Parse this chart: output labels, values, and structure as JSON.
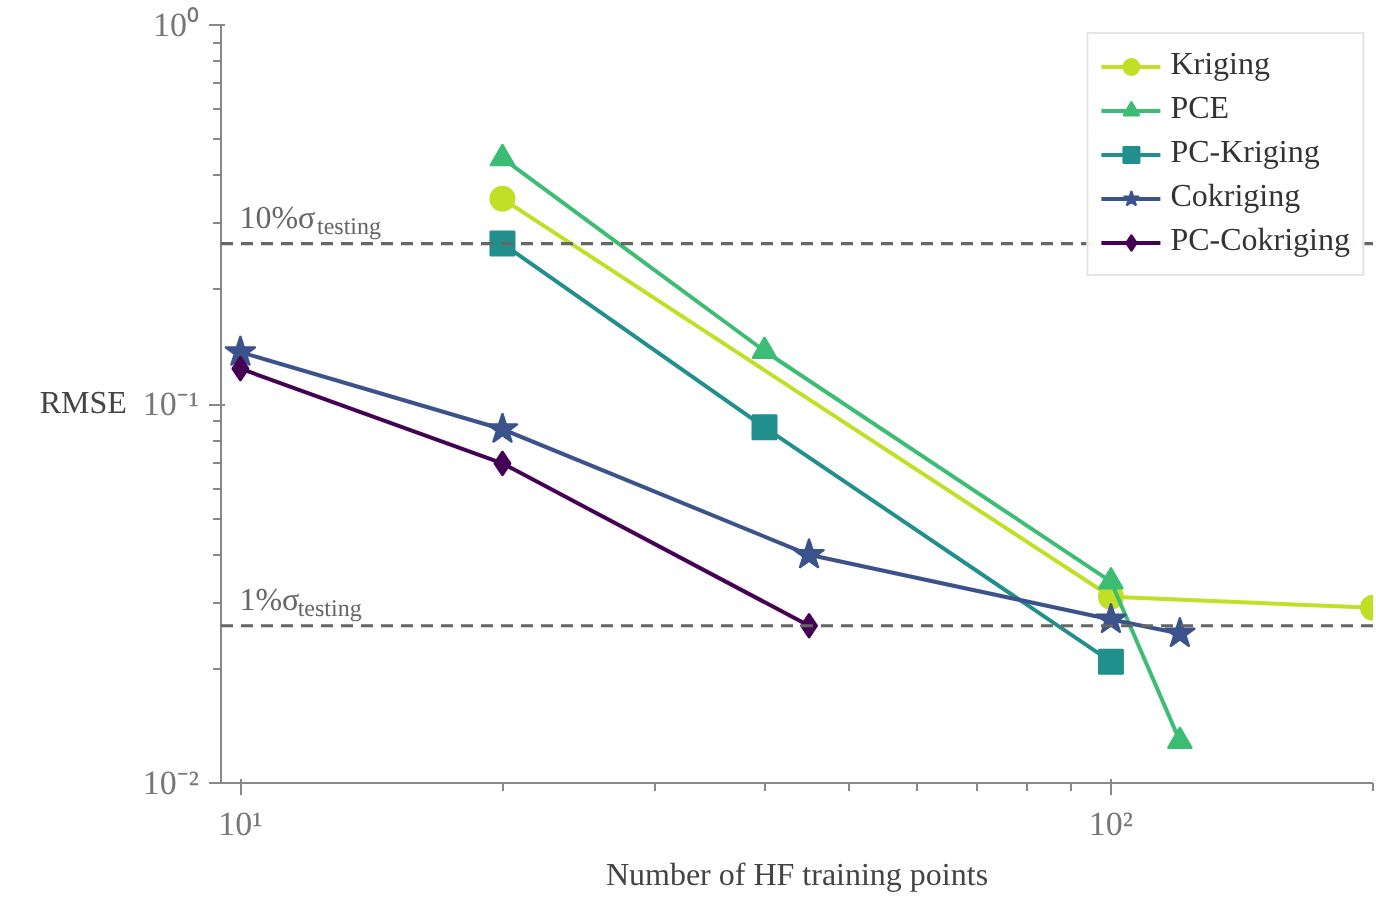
{
  "chart_data": {
    "type": "line",
    "xlabel": "Number of HF training points",
    "ylabel": "RMSE",
    "log": "xy",
    "grid": false,
    "legend": "top right",
    "xlim": [
      9.5,
      200
    ],
    "ylim": [
      0.01,
      1
    ],
    "xticks": [
      {
        "value": 10,
        "label": "10¹"
      },
      {
        "value": 100,
        "label": "10²"
      }
    ],
    "yticks": [
      {
        "value": 0.01,
        "label": "10⁻²"
      },
      {
        "value": 0.1,
        "label": "10⁻¹"
      },
      {
        "value": 1,
        "label": "10⁰"
      }
    ],
    "series": [
      {
        "name": "Kriging",
        "color": "#c0df25",
        "marker": "circle",
        "x": [
          20,
          100,
          200
        ],
        "values": [
          0.348,
          0.031,
          0.029
        ]
      },
      {
        "name": "PCE",
        "color": "#3dbc74",
        "marker": "triangle",
        "x": [
          20,
          40,
          100,
          120
        ],
        "values": [
          0.445,
          0.138,
          0.034,
          0.0129
        ]
      },
      {
        "name": "PC-Kriging",
        "color": "#21908d",
        "marker": "square",
        "x": [
          20,
          40,
          100
        ],
        "values": [
          0.265,
          0.0868,
          0.0209
        ]
      },
      {
        "name": "Cokriging",
        "color": "#3b528b",
        "marker": "star",
        "x": [
          10,
          20,
          45,
          100,
          120
        ],
        "values": [
          0.137,
          0.0858,
          0.04,
          0.027,
          0.0248
        ]
      },
      {
        "name": "PC-Cokriging",
        "color": "#440154",
        "marker": "diamond",
        "x": [
          10,
          20,
          45
        ],
        "values": [
          0.124,
          0.0697,
          0.026
        ]
      }
    ],
    "ref_lines": [
      {
        "axis": "y",
        "value": 0.265,
        "label": "10%σ$_{testing}$",
        "color": "#666666",
        "line_style": "dashed"
      },
      {
        "axis": "y",
        "value": 0.026,
        "label": "1%σ$_{testing}$",
        "color": "#666666",
        "line_style": "dashed"
      }
    ]
  }
}
